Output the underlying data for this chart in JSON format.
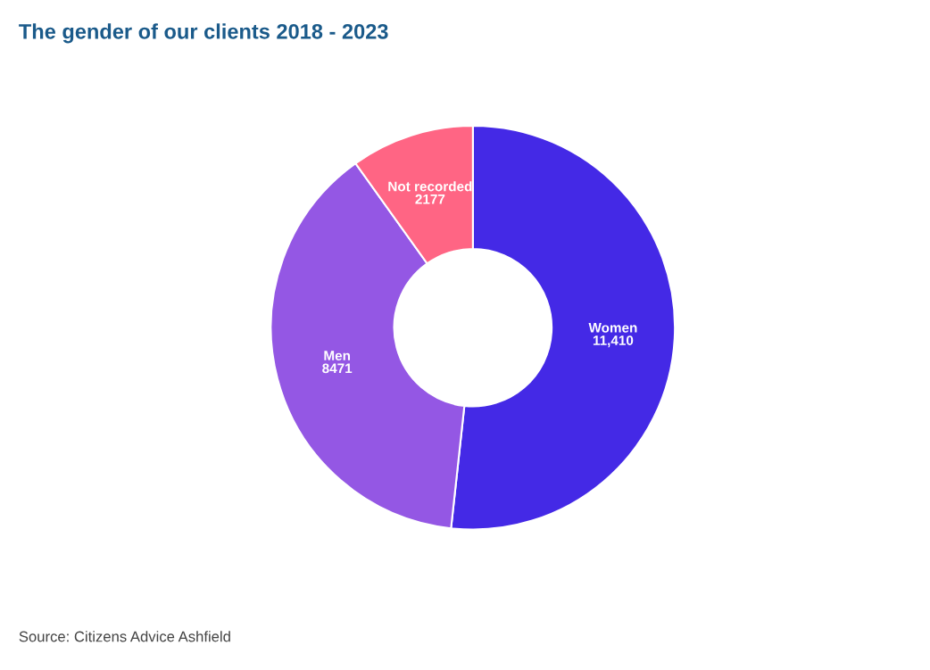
{
  "chart_data": {
    "type": "donut",
    "title": "The gender of our clients 2018 - 2023",
    "categories": [
      "Women",
      "Men",
      "Not recorded"
    ],
    "values": [
      11410,
      8471,
      2177
    ],
    "value_labels": [
      "11,410",
      "8471",
      "2177"
    ],
    "colors": [
      "#4429e6",
      "#9457e4",
      "#ff6584"
    ],
    "annotations": [
      "Source: Citizens Advice Ashfield"
    ],
    "legend": false
  }
}
